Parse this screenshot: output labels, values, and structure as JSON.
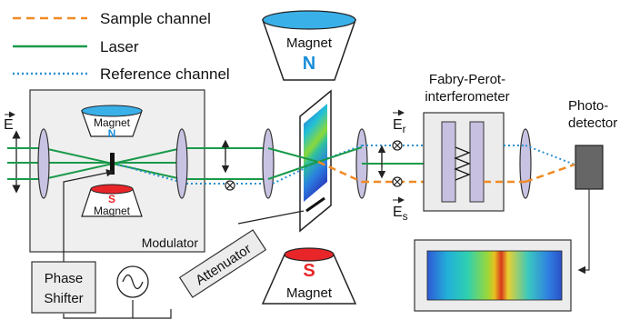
{
  "legend": {
    "sample": "Sample channel",
    "laser": "Laser",
    "reference": "Reference channel"
  },
  "labels": {
    "magnet_top": "Magnet",
    "magnet_top_pole": "N",
    "magnet_small_top": "Magnet",
    "magnet_small_top_pole": "N",
    "magnet_small_bottom_pole": "S",
    "magnet_small_bottom": "Magnet",
    "magnet_bottom_pole": "S",
    "magnet_bottom": "Magnet",
    "modulator": "Modulator",
    "phase_shifter_1": "Phase",
    "phase_shifter_2": "Shifter",
    "attenuator": "Attenuator",
    "fp_1": "Fabry-Perot-",
    "fp_2": "interferometer",
    "photo_1": "Photo-",
    "photo_2": "detector",
    "e_field": "E",
    "e_r": "E",
    "e_r_sub": "r",
    "e_s": "E",
    "e_s_sub": "s"
  },
  "colors": {
    "sample": "#f08a24",
    "laser": "#1a9a4a",
    "reference": "#2a8fd0",
    "lens": "#c9c3e3",
    "fp_plate": "#c8c0e0",
    "magnet_n": "#3ab0e8",
    "magnet_s": "#e8262a",
    "detector": "#666666"
  }
}
